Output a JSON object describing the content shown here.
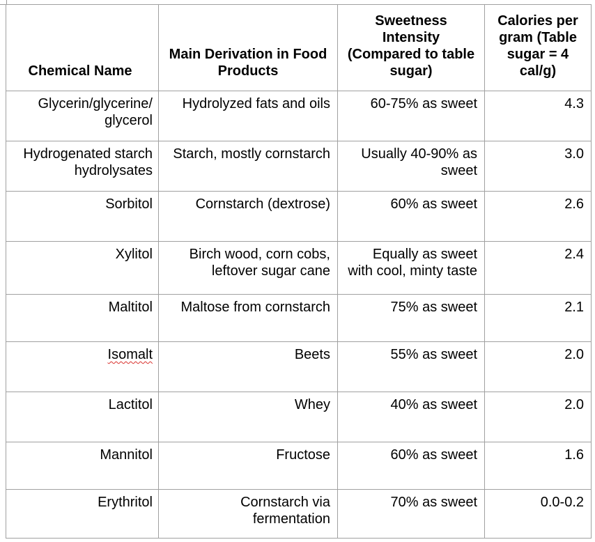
{
  "table": {
    "headers": {
      "name": "Chemical Name",
      "derivation": "Main Derivation in Food Products",
      "sweetness": "Sweetness Intensity (Compared to table sugar)",
      "calories": "Calories per gram (Table sugar = 4 cal/g)"
    },
    "rows": [
      {
        "name": "Glycerin/glycerine/ glycerol",
        "derivation": "Hydrolyzed fats and oils",
        "sweetness": "60-75% as sweet",
        "calories": "4.3"
      },
      {
        "name": "Hydrogenated starch hydrolysates",
        "derivation": "Starch, mostly cornstarch",
        "sweetness": "Usually 40-90% as sweet",
        "calories": "3.0"
      },
      {
        "name": "Sorbitol",
        "derivation": "Cornstarch (dextrose)",
        "sweetness": "60% as sweet",
        "calories": "2.6"
      },
      {
        "name": "Xylitol",
        "derivation": "Birch wood, corn cobs, leftover sugar cane",
        "sweetness": "Equally as sweet with cool, minty taste",
        "calories": "2.4"
      },
      {
        "name": "Maltitol",
        "derivation": "Maltose from cornstarch",
        "sweetness": "75% as sweet",
        "calories": "2.1"
      },
      {
        "name": "Isomalt",
        "derivation": "Beets",
        "sweetness": "55% as sweet",
        "calories": "2.0"
      },
      {
        "name": "Lactitol",
        "derivation": "Whey",
        "sweetness": "40% as sweet",
        "calories": "2.0"
      },
      {
        "name": "Mannitol",
        "derivation": "Fructose",
        "sweetness": "60% as sweet",
        "calories": "1.6"
      },
      {
        "name": "Erythritol",
        "derivation": "Cornstarch via fermentation",
        "sweetness": "70% as sweet",
        "calories": "0.0-0.2"
      }
    ]
  },
  "colors": {
    "border": "#a0a0a0",
    "spellcheck_underline": "#d9302c"
  }
}
